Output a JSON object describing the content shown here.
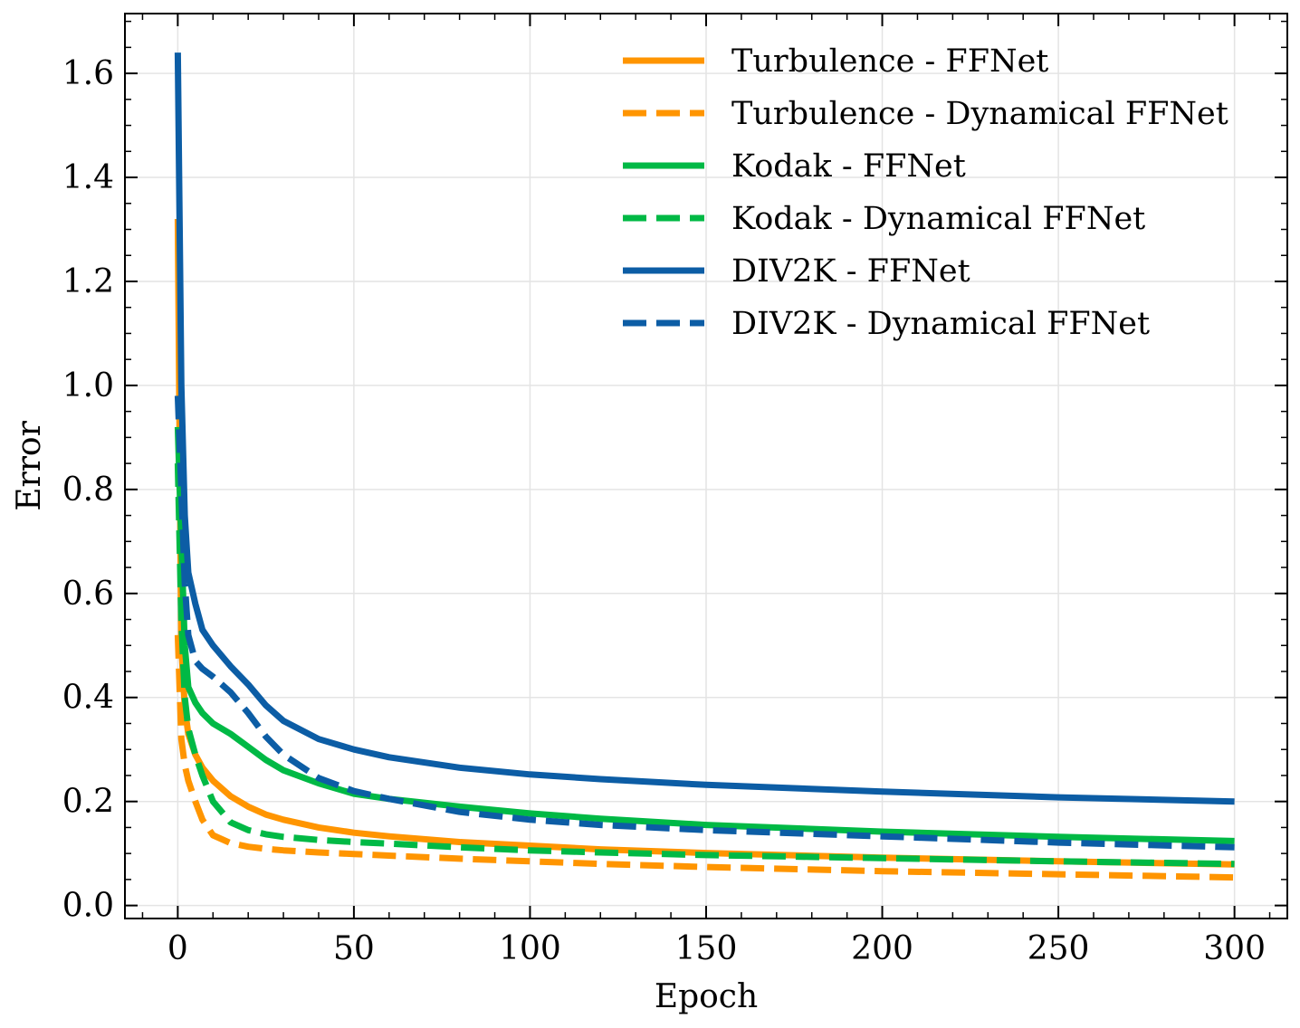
{
  "chart_data": {
    "type": "line",
    "title": "",
    "xlabel": "Epoch",
    "ylabel": "Error",
    "xlim": [
      -15,
      315
    ],
    "ylim": [
      -0.025,
      1.715
    ],
    "grid": true,
    "legend_position": "top-right",
    "xticks": [
      0,
      50,
      100,
      150,
      200,
      250,
      300
    ],
    "xtick_labels": [
      "0",
      "50",
      "100",
      "150",
      "200",
      "250",
      "300"
    ],
    "yticks": [
      0.0,
      0.2,
      0.4,
      0.6,
      0.8,
      1.0,
      1.2,
      1.4,
      1.6
    ],
    "ytick_labels": [
      "0.0",
      "0.2",
      "0.4",
      "0.6",
      "0.8",
      "1.0",
      "1.2",
      "1.4",
      "1.6"
    ],
    "x": [
      0,
      1,
      2,
      3,
      5,
      7,
      10,
      15,
      20,
      25,
      30,
      40,
      50,
      60,
      80,
      100,
      120,
      150,
      200,
      250,
      300
    ],
    "series": [
      {
        "name": "Turbulence - FFNet",
        "color": "#ff9500",
        "dash": "solid",
        "values": [
          1.32,
          0.5,
          0.38,
          0.33,
          0.29,
          0.265,
          0.24,
          0.21,
          0.19,
          0.175,
          0.165,
          0.15,
          0.14,
          0.133,
          0.122,
          0.115,
          0.108,
          0.101,
          0.092,
          0.085,
          0.079
        ]
      },
      {
        "name": "Turbulence - Dynamical FFNet",
        "color": "#ff9500",
        "dash": "dashed",
        "values": [
          0.52,
          0.32,
          0.27,
          0.24,
          0.2,
          0.165,
          0.135,
          0.12,
          0.113,
          0.109,
          0.106,
          0.102,
          0.099,
          0.096,
          0.09,
          0.085,
          0.08,
          0.074,
          0.066,
          0.06,
          0.054
        ]
      },
      {
        "name": "Kodak - FFNet",
        "color": "#00b945",
        "dash": "solid",
        "values": [
          0.92,
          0.7,
          0.5,
          0.42,
          0.39,
          0.37,
          0.35,
          0.33,
          0.305,
          0.28,
          0.26,
          0.235,
          0.215,
          0.205,
          0.19,
          0.177,
          0.167,
          0.155,
          0.142,
          0.132,
          0.124
        ]
      },
      {
        "name": "Kodak - Dynamical FFNet",
        "color": "#00b945",
        "dash": "dashed",
        "values": [
          0.85,
          0.55,
          0.4,
          0.34,
          0.29,
          0.25,
          0.2,
          0.16,
          0.145,
          0.137,
          0.132,
          0.126,
          0.122,
          0.119,
          0.112,
          0.106,
          0.102,
          0.097,
          0.091,
          0.085,
          0.08
        ]
      },
      {
        "name": "DIV2K - FFNet",
        "color": "#0c5da5",
        "dash": "solid",
        "values": [
          1.64,
          1.0,
          0.75,
          0.64,
          0.58,
          0.53,
          0.5,
          0.46,
          0.425,
          0.385,
          0.355,
          0.32,
          0.3,
          0.285,
          0.265,
          0.252,
          0.243,
          0.232,
          0.219,
          0.208,
          0.2
        ]
      },
      {
        "name": "DIV2K - Dynamical FFNet",
        "color": "#0c5da5",
        "dash": "dashed",
        "values": [
          0.98,
          0.8,
          0.62,
          0.52,
          0.47,
          0.455,
          0.44,
          0.41,
          0.37,
          0.325,
          0.29,
          0.245,
          0.22,
          0.205,
          0.18,
          0.165,
          0.155,
          0.145,
          0.133,
          0.121,
          0.112
        ]
      }
    ]
  }
}
